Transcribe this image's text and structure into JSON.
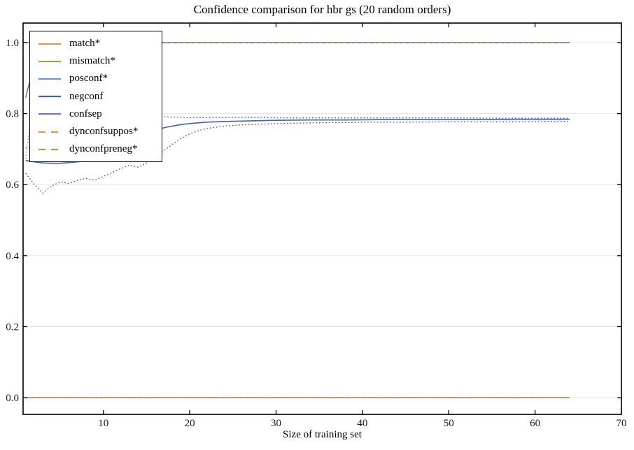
{
  "chart_data": {
    "type": "line",
    "title": "Confidence comparison for hbr gs (20 random orders)",
    "xlabel": "Size of training set",
    "ylabel": "",
    "xlim": [
      0.7,
      70
    ],
    "ylim": [
      -0.047,
      1.055
    ],
    "xticks": [
      10,
      20,
      30,
      40,
      50,
      60,
      70
    ],
    "yticks": [
      {
        "value": 0.0,
        "label": "0.0"
      },
      {
        "value": 0.2,
        "label": "0.2"
      },
      {
        "value": 0.4,
        "label": "0.4"
      },
      {
        "value": 0.6,
        "label": "0.6"
      },
      {
        "value": 0.8,
        "label": "0.8"
      },
      {
        "value": 1.0,
        "label": "1.0"
      }
    ],
    "grid": "horizontal",
    "gridline_color": "#e6e6e6",
    "legend_position": "upper left",
    "series": [
      {
        "key": "confsep-mean",
        "legend": "confsep",
        "color": "#8070b2",
        "style": "solid",
        "width": 1.6,
        "points": [
          [
            1,
            0.845
          ],
          [
            1.3,
            0.875
          ],
          [
            1.6,
            0.9
          ],
          [
            2,
            0.925
          ],
          [
            2.5,
            0.948
          ],
          [
            3,
            0.963
          ],
          [
            3.5,
            0.973
          ],
          [
            4,
            0.981
          ],
          [
            5,
            0.991
          ],
          [
            6,
            0.996
          ],
          [
            8,
            0.999
          ],
          [
            10,
            1.0
          ],
          [
            64,
            1.0
          ]
        ]
      },
      {
        "key": "mismatch-std-lower",
        "legend": "mismatch*",
        "color": "#a2a45a",
        "style": "dotted",
        "width": 1.3,
        "points": [
          [
            1,
            0.672
          ],
          [
            1.3,
            0.73
          ],
          [
            1.6,
            0.785
          ],
          [
            2,
            0.845
          ],
          [
            2.5,
            0.9
          ],
          [
            3,
            0.936
          ],
          [
            3.5,
            0.957
          ],
          [
            4,
            0.971
          ],
          [
            5,
            0.987
          ],
          [
            6,
            0.994
          ],
          [
            7,
            0.998
          ],
          [
            8,
            1.0
          ],
          [
            10,
            1.0
          ]
        ]
      },
      {
        "key": "mismatch-mean",
        "legend": "mismatch*",
        "color": "#a2a45a",
        "style": "solid",
        "width": 1.6,
        "points": [
          [
            1,
            1.0
          ],
          [
            64,
            1.0
          ]
        ]
      },
      {
        "key": "confsep-std-band",
        "legend": "confsep",
        "color": "#8070b2",
        "style": "dashed-short",
        "width": 1.4,
        "points": [
          [
            3,
            1.0
          ],
          [
            64,
            1.0
          ]
        ]
      },
      {
        "key": "negconf-std-lower",
        "legend": "negconf",
        "color": "#4560af",
        "style": "dotted",
        "width": 1.3,
        "points": [
          [
            1,
            0.632
          ],
          [
            2,
            0.601
          ],
          [
            3,
            0.576
          ],
          [
            3.5,
            0.586
          ],
          [
            4,
            0.596
          ],
          [
            5,
            0.608
          ],
          [
            6,
            0.603
          ],
          [
            7,
            0.612
          ],
          [
            8,
            0.618
          ],
          [
            9,
            0.612
          ],
          [
            10,
            0.623
          ],
          [
            11,
            0.634
          ],
          [
            12,
            0.645
          ],
          [
            13,
            0.655
          ],
          [
            14,
            0.649
          ],
          [
            15,
            0.661
          ],
          [
            16,
            0.676
          ],
          [
            17,
            0.695
          ],
          [
            18,
            0.714
          ],
          [
            19,
            0.73
          ],
          [
            20,
            0.743
          ],
          [
            21,
            0.752
          ],
          [
            22,
            0.758
          ],
          [
            24,
            0.765
          ],
          [
            26,
            0.768
          ],
          [
            28,
            0.77
          ],
          [
            30,
            0.772
          ],
          [
            34,
            0.774
          ],
          [
            38,
            0.775
          ],
          [
            42,
            0.776
          ],
          [
            46,
            0.776
          ],
          [
            50,
            0.777
          ],
          [
            54,
            0.777
          ],
          [
            58,
            0.777
          ],
          [
            61,
            0.778
          ],
          [
            64,
            0.778
          ]
        ]
      },
      {
        "key": "negconf-std-upper",
        "legend": "negconf",
        "color": "#4560af",
        "style": "dotted",
        "width": 1.3,
        "points": [
          [
            1,
            0.703
          ],
          [
            2,
            0.71
          ],
          [
            3,
            0.718
          ],
          [
            4,
            0.72
          ],
          [
            5,
            0.716
          ],
          [
            6,
            0.72
          ],
          [
            7,
            0.717
          ],
          [
            8,
            0.721
          ],
          [
            9,
            0.73
          ],
          [
            10,
            0.738
          ],
          [
            11,
            0.752
          ],
          [
            12,
            0.765
          ],
          [
            13,
            0.777
          ],
          [
            14,
            0.784
          ],
          [
            15,
            0.79
          ],
          [
            16,
            0.792
          ],
          [
            17,
            0.791
          ],
          [
            18,
            0.79
          ],
          [
            19,
            0.79
          ],
          [
            20,
            0.789
          ],
          [
            24,
            0.789
          ],
          [
            28,
            0.789
          ],
          [
            32,
            0.788
          ],
          [
            38,
            0.788
          ],
          [
            44,
            0.788
          ],
          [
            50,
            0.788
          ],
          [
            56,
            0.787
          ],
          [
            60,
            0.787
          ],
          [
            64,
            0.787
          ]
        ]
      },
      {
        "key": "negconf-mean",
        "legend": "negconf",
        "color": "#4560af",
        "style": "solid",
        "width": 1.6,
        "points": [
          [
            1,
            0.668
          ],
          [
            2,
            0.664
          ],
          [
            3,
            0.661
          ],
          [
            4,
            0.66
          ],
          [
            5,
            0.66
          ],
          [
            6,
            0.662
          ],
          [
            7,
            0.664
          ],
          [
            8,
            0.667
          ],
          [
            9,
            0.671
          ],
          [
            10,
            0.678
          ],
          [
            11,
            0.69
          ],
          [
            12,
            0.704
          ],
          [
            13,
            0.718
          ],
          [
            14,
            0.731
          ],
          [
            15,
            0.743
          ],
          [
            16,
            0.753
          ],
          [
            17,
            0.76
          ],
          [
            18,
            0.765
          ],
          [
            19,
            0.769
          ],
          [
            20,
            0.772
          ],
          [
            22,
            0.776
          ],
          [
            24,
            0.778
          ],
          [
            26,
            0.779
          ],
          [
            28,
            0.78
          ],
          [
            30,
            0.781
          ],
          [
            34,
            0.782
          ],
          [
            38,
            0.782
          ],
          [
            42,
            0.783
          ],
          [
            46,
            0.783
          ],
          [
            50,
            0.783
          ],
          [
            54,
            0.783
          ],
          [
            58,
            0.784
          ],
          [
            61,
            0.784
          ],
          [
            64,
            0.784
          ]
        ]
      },
      {
        "key": "match-mean",
        "legend": "match*",
        "color": "#e1974c",
        "style": "solid",
        "width": 1.6,
        "points": [
          [
            1,
            0.0
          ],
          [
            64,
            0.0
          ]
        ]
      },
      {
        "key": "dynconfpreneg-mean",
        "legend": "dynconfpreneg*",
        "color": "#a2a45a",
        "style": "dashed",
        "width": 1.6,
        "points": [
          [
            1,
            0.0
          ],
          [
            64,
            0.0
          ]
        ]
      },
      {
        "key": "posconf-mean",
        "legend": "posconf*",
        "color": "#7293cb",
        "style": "solid",
        "width": 1.6,
        "points": [
          [
            1,
            0.0
          ],
          [
            64,
            0.0
          ]
        ]
      },
      {
        "key": "dynconfsuppos-mean",
        "legend": "dynconfsuppos*",
        "color": "#e1974c",
        "style": "dashed",
        "width": 1.6,
        "points": [
          [
            1,
            0.0
          ],
          [
            64,
            0.0
          ]
        ]
      }
    ]
  },
  "legend": {
    "items": [
      {
        "label": "match*",
        "color": "#e1974c",
        "style": "solid"
      },
      {
        "label": "mismatch*",
        "color": "#a2a45a",
        "style": "solid"
      },
      {
        "label": "posconf*",
        "color": "#7293cb",
        "style": "solid"
      },
      {
        "label": "negconf",
        "color": "#4560af",
        "style": "solid"
      },
      {
        "label": "confsep",
        "color": "#8070b2",
        "style": "solid"
      },
      {
        "label": "dynconfsuppos*",
        "color": "#e1974c",
        "style": "dashed"
      },
      {
        "label": "dynconfpreneg*",
        "color": "#a2a45a",
        "style": "dashed"
      }
    ]
  }
}
